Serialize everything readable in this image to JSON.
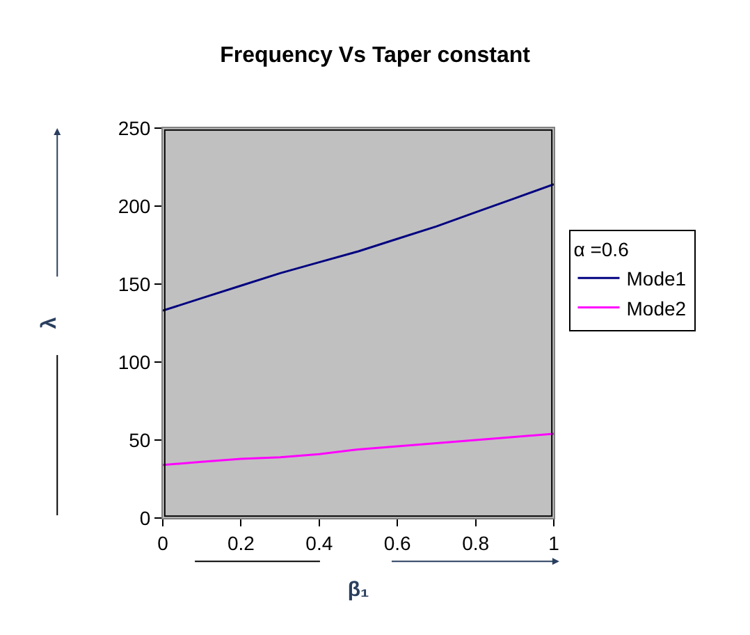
{
  "chart_data": {
    "type": "line",
    "title": "Frequency Vs Taper constant",
    "xlabel": "β₁",
    "ylabel": "λ",
    "legend_title": "α =0.6",
    "x": [
      0,
      0.1,
      0.2,
      0.3,
      0.4,
      0.5,
      0.6,
      0.7,
      0.8,
      0.9,
      1
    ],
    "series": [
      {
        "name": "Mode1",
        "color": "#000080",
        "values": [
          133,
          141,
          149,
          157,
          164,
          171,
          179,
          187,
          196,
          205,
          214
        ]
      },
      {
        "name": "Mode2",
        "color": "#ff00ff",
        "values": [
          34,
          36,
          38,
          39,
          41,
          44,
          46,
          48,
          50,
          52,
          54
        ]
      }
    ],
    "xlim": [
      0,
      1
    ],
    "xticks": [
      0,
      0.2,
      0.4,
      0.6,
      0.8,
      1
    ],
    "ylim": [
      0,
      250
    ],
    "yticks": [
      0,
      50,
      100,
      150,
      200,
      250
    ],
    "grid": false,
    "legend": "right",
    "marker": "none",
    "line_style": "solid"
  }
}
